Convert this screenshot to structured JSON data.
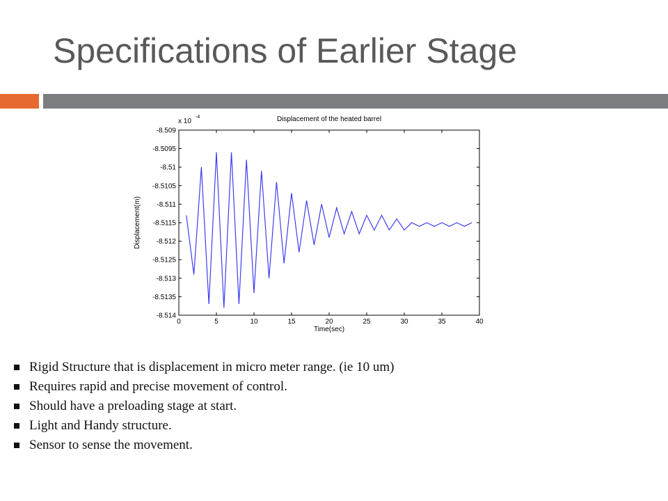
{
  "slide": {
    "title": "Specifications of Earlier Stage",
    "accent_color": "#e8692f",
    "bar_color": "#7b7d81"
  },
  "chart_data": {
    "type": "line",
    "title": "Displacement of the heated barrel",
    "xlabel": "Time(sec)",
    "ylabel": "Displacement(m)",
    "y_multiplier": "x 10",
    "y_exponent": "-4",
    "xlim": [
      0,
      40
    ],
    "ylim": [
      -8.514,
      -8.509
    ],
    "x_ticks": [
      "0",
      "5",
      "10",
      "15",
      "20",
      "25",
      "30",
      "35",
      "40"
    ],
    "y_ticks": [
      "-8.509",
      "-8.5095",
      "-8.51",
      "-8.5105",
      "-8.511",
      "-8.5115",
      "-8.512",
      "-8.5125",
      "-8.513",
      "-8.5135",
      "-8.514"
    ],
    "grid": false,
    "line_color": "#3d3df0",
    "series": [
      {
        "x": [
          1,
          2,
          3,
          4,
          5,
          6,
          7,
          8,
          9,
          10,
          11,
          12,
          13,
          14,
          15,
          16,
          17,
          18,
          19,
          20,
          21,
          22,
          23,
          24,
          25,
          26,
          27,
          28,
          29,
          30,
          31,
          32,
          33,
          34,
          35,
          36,
          37,
          38,
          39
        ],
        "values": [
          -8.5113,
          -8.5129,
          -8.51,
          -8.5137,
          -8.5096,
          -8.5138,
          -8.5096,
          -8.5137,
          -8.5098,
          -8.5134,
          -8.5101,
          -8.513,
          -8.5104,
          -8.5126,
          -8.5107,
          -8.5123,
          -8.5109,
          -8.5121,
          -8.511,
          -8.5119,
          -8.5111,
          -8.5118,
          -8.5112,
          -8.5118,
          -8.5113,
          -8.5117,
          -8.5113,
          -8.5117,
          -8.5114,
          -8.5117,
          -8.5115,
          -8.5116,
          -8.5115,
          -8.5116,
          -8.5115,
          -8.5116,
          -8.5115,
          -8.5116,
          -8.5115
        ]
      }
    ]
  },
  "bullets": [
    "Rigid Structure that is displacement in micro meter range. (ie 10 um)",
    "Requires rapid and precise movement of control.",
    "Should have a preloading stage at start.",
    "Light and Handy structure.",
    "Sensor to sense the movement."
  ]
}
